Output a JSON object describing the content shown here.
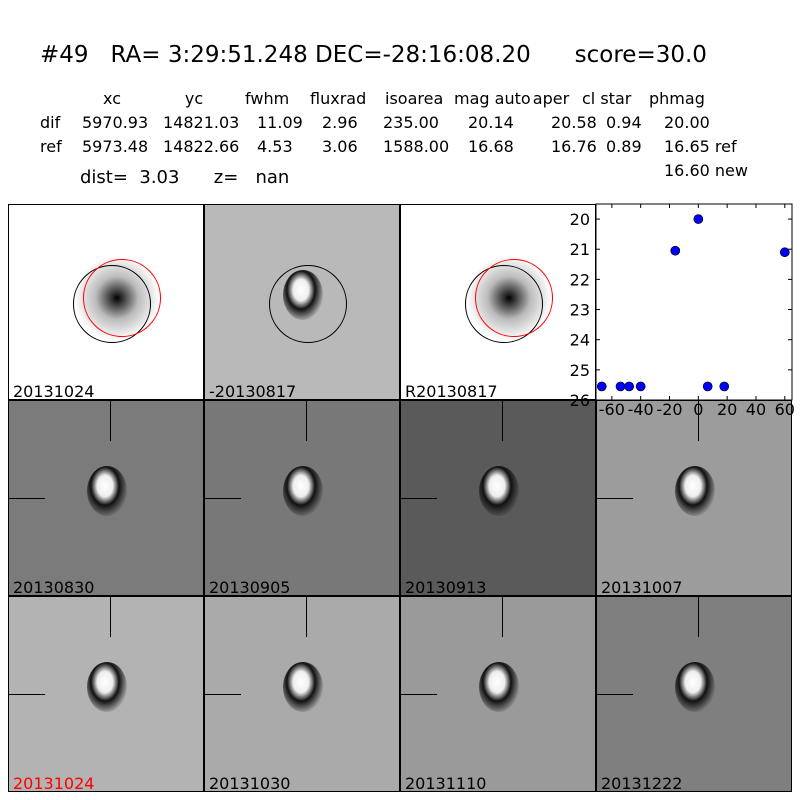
{
  "title": "#49   RA= 3:29:51.248 DEC=-28:16:08.20      score=30.0",
  "table": {
    "headers": [
      "xc",
      "yc",
      "fwhm",
      "fluxrad",
      "isoarea",
      "mag auto",
      "aper",
      "cl star",
      "phmag"
    ],
    "rows": [
      {
        "label": "dif",
        "values": [
          "5970.93",
          "14821.03",
          "11.09",
          "2.96",
          "235.00",
          "20.14",
          "20.58",
          "0.94",
          "20.00"
        ]
      },
      {
        "label": "ref",
        "values": [
          "5973.48",
          "14822.66",
          "4.53",
          "3.06",
          "1588.00",
          "16.68",
          "16.76",
          "0.89",
          "16.65 ref"
        ]
      }
    ],
    "extra": "16.60 new"
  },
  "dist_line": "dist=  3.03      z=   nan",
  "panels": [
    {
      "label": "20131024",
      "bg": "#ffffff",
      "circles": true
    },
    {
      "label": "-20130817",
      "bg": "#b9b9b9",
      "circles": "black"
    },
    {
      "label": "R20130817",
      "bg": "#ffffff",
      "circles": true
    },
    {
      "label": "20130830",
      "bg": "#7b7b7b"
    },
    {
      "label": "20130905",
      "bg": "#787878"
    },
    {
      "label": "20130913",
      "bg": "#5a5a5a"
    },
    {
      "label": "20131007",
      "bg": "#9c9c9c"
    },
    {
      "label": "20131024",
      "bg": "#b3b3b3",
      "color": "#ff0000"
    },
    {
      "label": "20131030",
      "bg": "#aaaaaa"
    },
    {
      "label": "20131110",
      "bg": "#9a9a9a"
    },
    {
      "label": "20131222",
      "bg": "#7f7f7f"
    }
  ],
  "chart_data": {
    "type": "scatter",
    "x": [
      -67,
      -54,
      -48,
      -40,
      -16,
      0,
      6.5,
      18,
      60
    ],
    "y": [
      25.55,
      25.55,
      25.55,
      25.55,
      21.05,
      20.0,
      25.55,
      25.55,
      21.1
    ],
    "xlim": [
      -71,
      65
    ],
    "ylim": [
      26,
      19.5
    ],
    "y_inverted": true,
    "xticks": [
      "-60",
      "-40",
      "-20",
      "0",
      "20",
      "40",
      "60"
    ],
    "xtick_values": [
      -60,
      -40,
      -20,
      0,
      20,
      40,
      60
    ],
    "yticks": [
      "20",
      "21",
      "22",
      "23",
      "24",
      "25",
      "26"
    ],
    "ytick_values": [
      20,
      21,
      22,
      23,
      24,
      25,
      26
    ],
    "marker_color": "#0000ff",
    "grid": false
  }
}
